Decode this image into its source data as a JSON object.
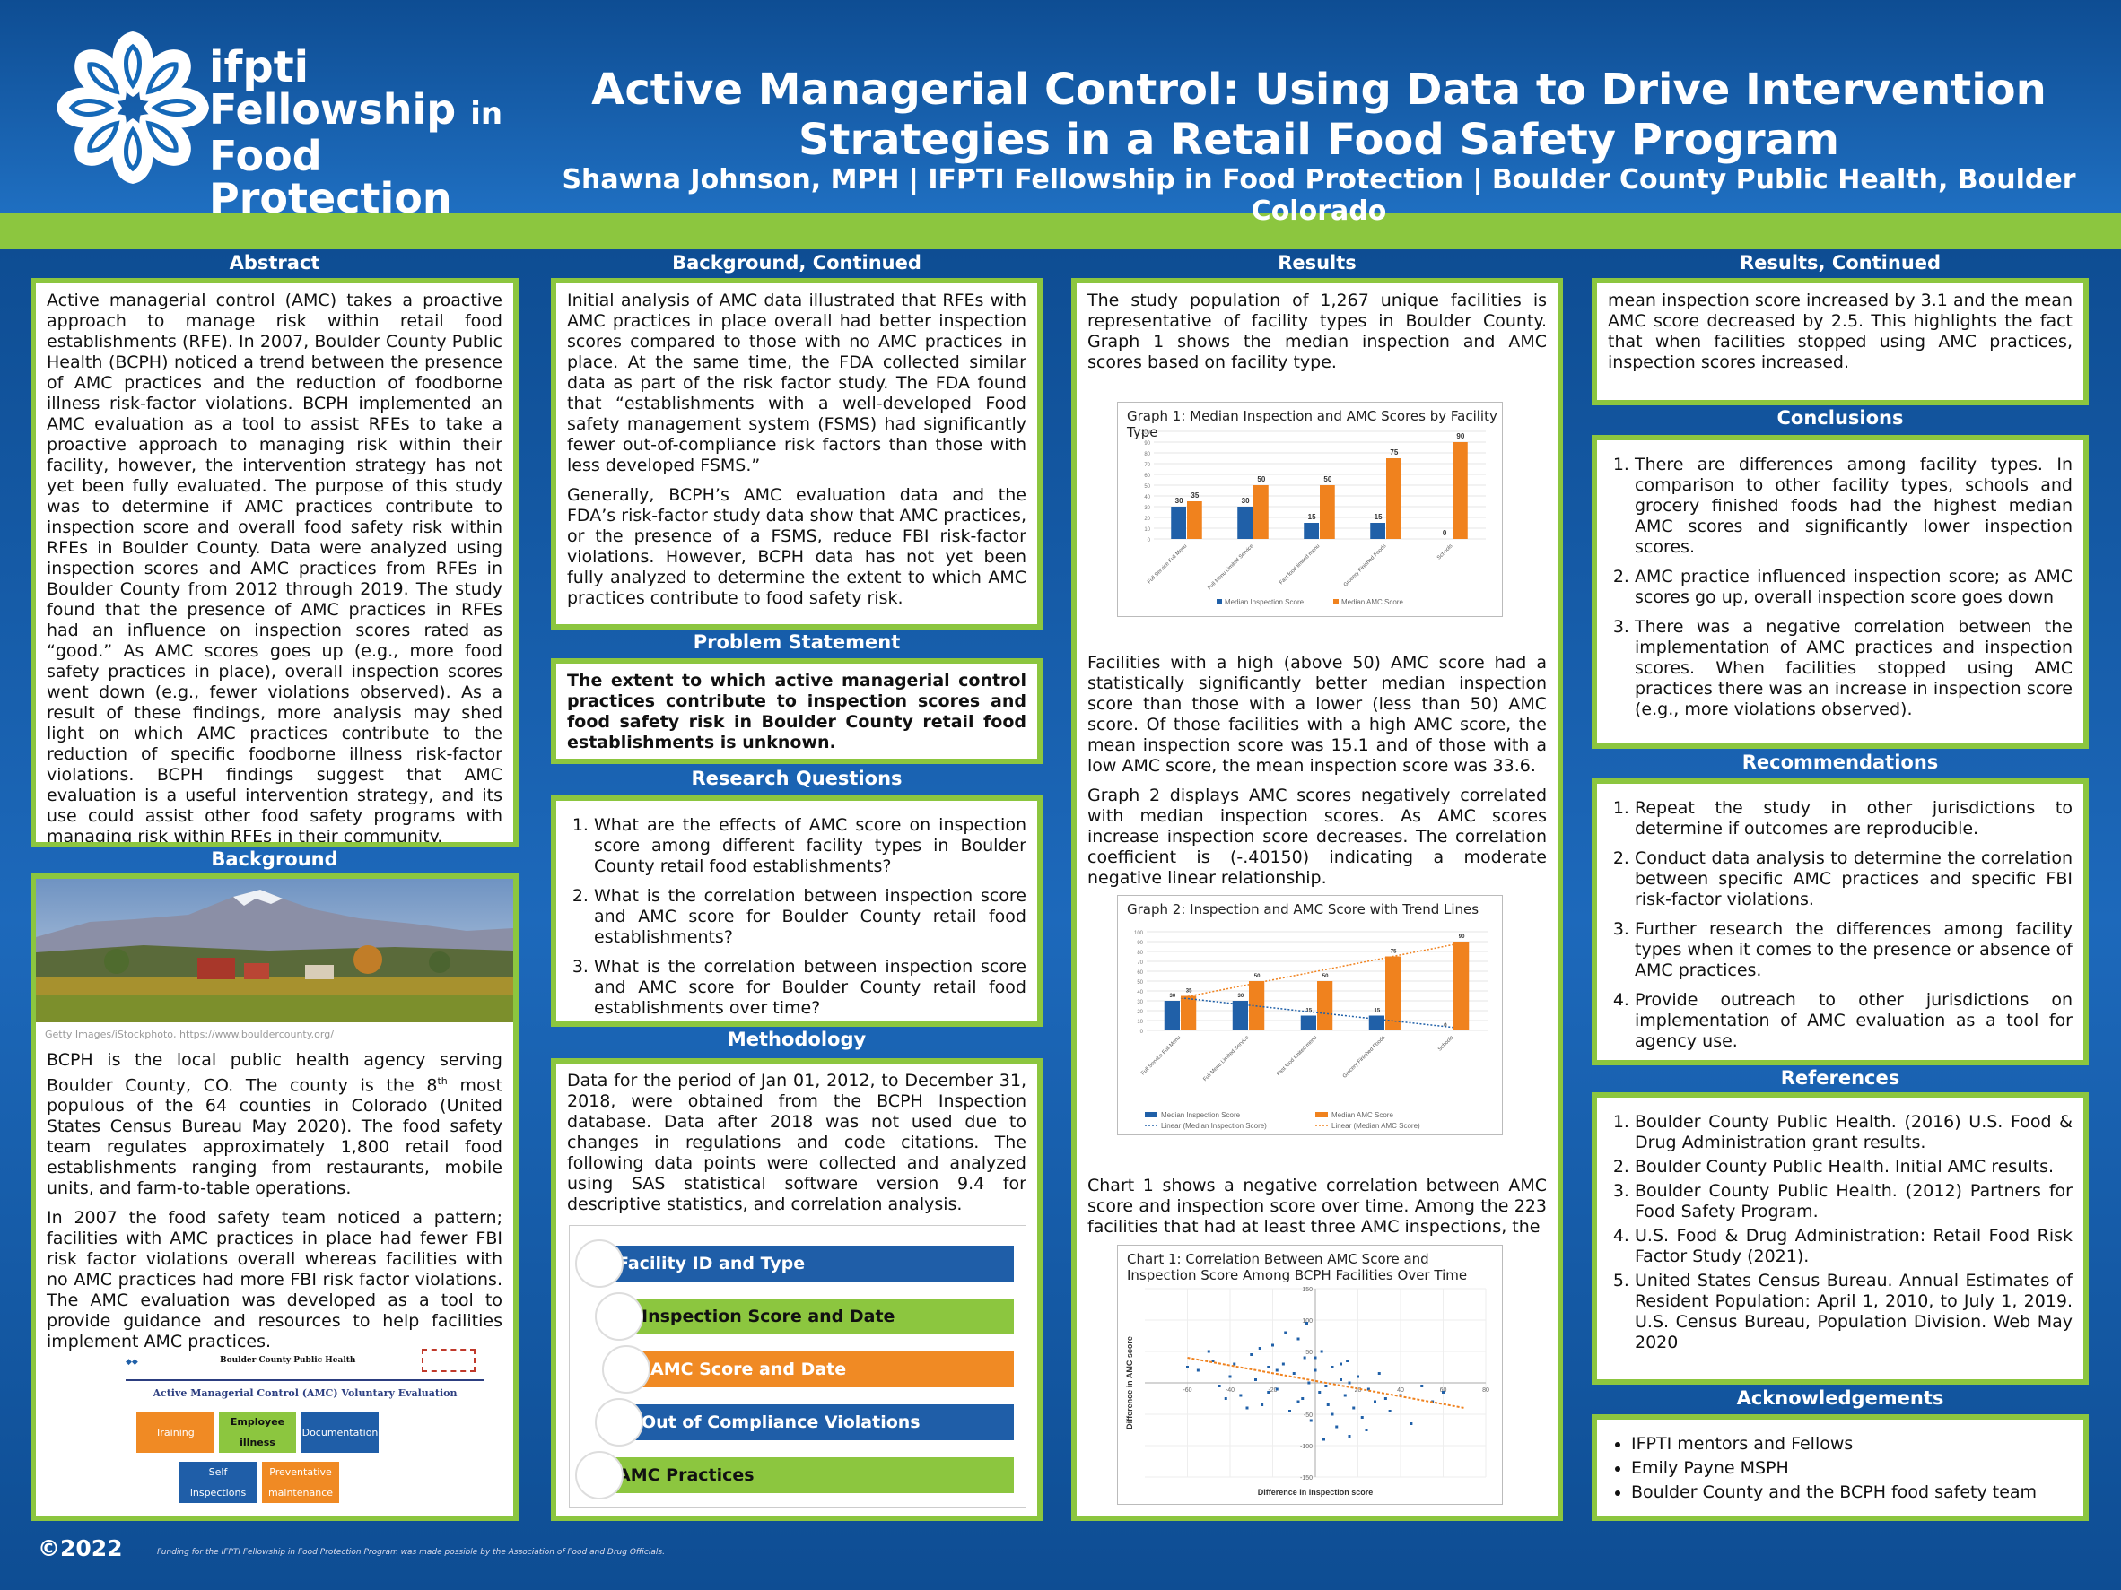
{
  "header": {
    "logo_line1": "ifpti",
    "logo_line2": "Fellowship",
    "logo_in": "in",
    "logo_line3": "Food Protection",
    "title": "Active Managerial Control: Using Data to Drive Intervention Strategies in a Retail Food Safety Program",
    "authors": "Shawna Johnson, MPH | IFPTI Fellowship in Food Protection | Boulder County Public Health, Boulder Colorado"
  },
  "abstract": {
    "heading": "Abstract",
    "text": "Active managerial control (AMC) takes a proactive approach to manage risk within retail food establishments (RFE). In 2007, Boulder County Public Health (BCPH) noticed a trend between the presence of AMC practices and the reduction of foodborne illness risk-factor violations. BCPH implemented an AMC evaluation as a tool to assist RFEs to take a proactive approach to managing risk within their facility, however, the intervention strategy has not yet been fully evaluated. The purpose of this study was to determine if AMC practices contribute to inspection score and overall food safety risk within RFEs in Boulder County. Data were analyzed using inspection scores and AMC practices from RFEs in Boulder County from 2012 through 2019. The study found that the presence of AMC practices in RFEs had an influence on inspection scores rated as “good.” As AMC scores goes up (e.g., more food safety practices in place), overall inspection scores went down (e.g., fewer violations observed). As a result of these findings, more analysis may shed light on which AMC practices contribute to the reduction of specific foodborne illness risk-factor violations. BCPH findings suggest that AMC evaluation is a useful intervention strategy, and its use could assist other food safety programs with managing risk within RFEs in their community."
  },
  "background": {
    "heading": "Background",
    "photo_credit": "Getty Images/iStockphoto, https://www.bouldercounty.org/",
    "p1_a": "BCPH is the local public health agency serving Boulder County, CO. The county is the 8",
    "p1_sup": "th",
    "p1_b": " most populous of the 64 counties in Colorado (United States Census Bureau May 2020). The food safety team regulates approximately 1,800 retail food establishments ranging from restaurants, mobile units, and farm-to-table operations.",
    "p2": "In 2007 the food safety team noticed a pattern; facilities with AMC practices in place had fewer FBI risk factor violations overall whereas facilities with no AMC practices had more FBI risk factor violations. The AMC evaluation was developed as a tool to provide guidance and resources to help facilities implement AMC practices.",
    "form_org": "Boulder County Public Health",
    "form_title": "Active Managerial Control (AMC) Voluntary Evaluation",
    "form_boxes": [
      "Training",
      "Employee illness",
      "Documentation",
      "Self inspections",
      "Preventative maintenance"
    ]
  },
  "bg_cont": {
    "heading": "Background, Continued",
    "p1": "Initial analysis of AMC data illustrated that RFEs with AMC practices in place overall had better inspection scores compared to those with no AMC practices in place. At the same time, the FDA collected similar data as part of the risk factor study. The FDA found that “establishments with a well-developed Food safety management system (FSMS) had significantly fewer out-of-compliance risk factors than those with less developed FSMS.”",
    "p2": "Generally, BCPH’s AMC evaluation data and the FDA’s risk-factor study data show that AMC practices, or the presence of a FSMS, reduce FBI risk-factor violations. However, BCPH data has not yet been fully analyzed to determine the extent to which AMC practices contribute to food safety risk."
  },
  "problem": {
    "heading": "Problem Statement",
    "text": "The extent to which active managerial control practices contribute to inspection scores and food safety risk in Boulder County retail food establishments is unknown."
  },
  "research": {
    "heading": "Research Questions",
    "items": [
      "What are the effects of AMC score on inspection score among different facility types in Boulder County retail food establishments?",
      "What is the correlation between inspection score and AMC score for Boulder County retail food establishments?",
      "What is the correlation between inspection score and AMC score for Boulder County retail food establishments over time?"
    ]
  },
  "method": {
    "heading": "Methodology",
    "text": "Data for the period of Jan 01, 2012, to December 31, 2018, were obtained from the BCPH Inspection database. Data after 2018 was not used due to changes in regulations and code citations. The following data points were collected and analyzed using SAS statistical software version 9.4 for descriptive statistics, and correlation analysis.",
    "steps": [
      "Facility ID and Type",
      "Inspection Score and Date",
      "AMC Score and Date",
      "Out of Compliance Violations",
      "AMC Practices"
    ]
  },
  "results": {
    "heading": "Results",
    "p1": "The study population of 1,267 unique facilities is representative of facility types in Boulder County. Graph 1 shows the median inspection and AMC scores based on facility type.",
    "p2": "Facilities with a high (above 50) AMC score had a statistically significantly better median inspection score than those with a lower (less than 50) AMC score. Of those facilities with a high AMC score, the mean inspection score was 15.1 and of those with a low AMC score, the mean inspection score was 33.6.",
    "p3": "Graph 2 displays AMC scores negatively correlated with median inspection scores. As AMC scores increase inspection score decreases. The correlation coefficient is (-.40150) indicating a moderate negative linear relationship.",
    "p4": "Chart 1 shows a negative correlation between AMC score and inspection score over time. Among the 223 facilities that had at least three AMC inspections, the"
  },
  "res_cont": {
    "heading": "Results, Continued",
    "text": "mean inspection score increased by 3.1 and the mean AMC score decreased by 2.5. This highlights the fact that when facilities stopped using AMC practices, inspection scores increased."
  },
  "conclusions": {
    "heading": "Conclusions",
    "items": [
      "There are differences among facility types. In comparison to other facility types, schools and grocery finished foods had the highest median AMC scores and significantly lower inspection scores.",
      "AMC practice influenced inspection score; as AMC scores go up, overall inspection score goes down",
      "There was a negative correlation between the implementation of AMC practices and inspection scores. When facilities stopped using AMC practices there was an increase in inspection score (e.g., more violations observed)."
    ]
  },
  "recommendations": {
    "heading": "Recommendations",
    "items": [
      "Repeat the study in other jurisdictions to determine if outcomes are reproducible.",
      "Conduct data analysis to determine the correlation between specific AMC practices and specific FBI risk-factor violations.",
      "Further research the differences among facility types when it comes to the presence or absence of AMC practices.",
      "Provide outreach to other jurisdictions on implementation of AMC evaluation as a tool for agency use."
    ]
  },
  "references": {
    "heading": "References",
    "items": [
      "Boulder County Public Health. (2016) U.S. Food & Drug Administration grant results.",
      "Boulder County Public Health. Initial AMC results.",
      "Boulder County Public Health. (2012) Partners for Food Safety Program.",
      "U.S. Food & Drug Administration: Retail Food Risk Factor Study (2021).",
      "United States Census Bureau. Annual Estimates of Resident Population: April 1, 2010, to July 1, 2019. U.S. Census Bureau, Population Division. Web May 2020"
    ]
  },
  "acknowledgements": {
    "heading": "Acknowledgements",
    "items": [
      "IFPTI mentors and Fellows",
      "Emily Payne MSPH",
      "Boulder County and the BCPH food safety team"
    ]
  },
  "footer": {
    "copyright": "©2022",
    "funding": "Funding for the IFPTI Fellowship in Food Protection Program was made possible by the Association of Food and Drug Officials."
  },
  "colors": {
    "blue": "#1b63ae",
    "green": "#8cc63f",
    "chart_blue": "#2060a8",
    "chart_orange": "#f0821e"
  },
  "chart_data": [
    {
      "type": "bar",
      "title": "Graph 1: Median Inspection and AMC Scores by Facility Type",
      "categories": [
        "Full Service Full Menu",
        "Full Menu Limited Service",
        "Fast food limited menu",
        "Grocery Finished Foods",
        "Schools"
      ],
      "series": [
        {
          "name": "Median Inspection Score",
          "values": [
            30,
            30,
            15,
            15,
            0
          ]
        },
        {
          "name": "Median AMC Score",
          "values": [
            35,
            50,
            50,
            75,
            90
          ]
        }
      ],
      "ylim": [
        0,
        100
      ],
      "yticks": [
        0,
        10,
        20,
        30,
        40,
        50,
        60,
        70,
        80,
        90,
        100
      ],
      "legend": "bottom"
    },
    {
      "type": "bar",
      "title": "Graph 2: Inspection and AMC Score with Trend Lines",
      "categories": [
        "Full Service Full Menu",
        "Full Menu Limited Service",
        "Fast food limited menu",
        "Grocery Finished Foods",
        "Schools"
      ],
      "series": [
        {
          "name": "Median Inspection Score",
          "values": [
            30,
            30,
            15,
            15,
            0
          ]
        },
        {
          "name": "Median AMC Score",
          "values": [
            35,
            50,
            50,
            75,
            90
          ]
        }
      ],
      "trendlines": [
        "Linear (Median Inspection Score)",
        "Linear (Median AMC Score)"
      ],
      "ylim": [
        0,
        100
      ],
      "yticks": [
        0,
        10,
        20,
        30,
        40,
        50,
        60,
        70,
        80,
        90,
        100
      ],
      "legend": "bottom"
    },
    {
      "type": "scatter",
      "title": "Chart 1: Correlation Between AMC Score and Inspection Score Among BCPH Facilities Over Time",
      "xlabel": "Difference in inspection score",
      "ylabel": "Difference in AMC score",
      "xlim": [
        -80,
        80
      ],
      "ylim": [
        -150,
        150
      ],
      "xticks": [
        -60,
        -40,
        -20,
        20,
        40,
        60,
        80
      ],
      "yticks": [
        -150,
        -100,
        -50,
        50,
        100,
        150
      ],
      "points": [
        [
          -55,
          20
        ],
        [
          -48,
          35
        ],
        [
          -40,
          10
        ],
        [
          -35,
          -20
        ],
        [
          -30,
          45
        ],
        [
          -28,
          5
        ],
        [
          -25,
          -35
        ],
        [
          -22,
          25
        ],
        [
          -20,
          60
        ],
        [
          -18,
          -10
        ],
        [
          -15,
          30
        ],
        [
          -12,
          -45
        ],
        [
          -10,
          15
        ],
        [
          -8,
          70
        ],
        [
          -6,
          -25
        ],
        [
          -5,
          40
        ],
        [
          -3,
          0
        ],
        [
          -2,
          -60
        ],
        [
          0,
          20
        ],
        [
          2,
          -15
        ],
        [
          3,
          50
        ],
        [
          5,
          -5
        ],
        [
          6,
          -35
        ],
        [
          8,
          25
        ],
        [
          10,
          -70
        ],
        [
          12,
          5
        ],
        [
          14,
          -20
        ],
        [
          15,
          35
        ],
        [
          18,
          -40
        ],
        [
          20,
          10
        ],
        [
          22,
          -55
        ],
        [
          25,
          -10
        ],
        [
          28,
          -30
        ],
        [
          30,
          15
        ],
        [
          35,
          -45
        ],
        [
          40,
          -20
        ],
        [
          45,
          -65
        ],
        [
          50,
          -5
        ],
        [
          -45,
          -5
        ],
        [
          -38,
          30
        ],
        [
          -32,
          -40
        ],
        [
          -26,
          55
        ],
        [
          -14,
          80
        ],
        [
          -4,
          95
        ],
        [
          4,
          -90
        ],
        [
          16,
          -85
        ],
        [
          24,
          -75
        ],
        [
          -50,
          50
        ],
        [
          -42,
          -25
        ],
        [
          -18,
          20
        ],
        [
          -8,
          -30
        ],
        [
          0,
          40
        ],
        [
          8,
          -50
        ],
        [
          16,
          0
        ],
        [
          33,
          -25
        ],
        [
          -60,
          25
        ],
        [
          55,
          -30
        ],
        [
          60,
          -15
        ],
        [
          -22,
          -15
        ],
        [
          12,
          30
        ]
      ],
      "trend": [
        [
          -60,
          40
        ],
        [
          70,
          -40
        ]
      ]
    }
  ]
}
